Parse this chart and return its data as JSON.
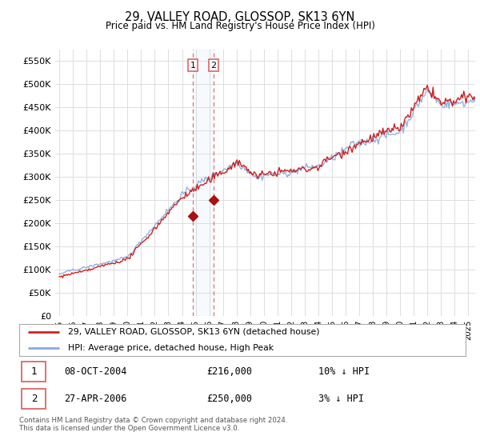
{
  "title": "29, VALLEY ROAD, GLOSSOP, SK13 6YN",
  "subtitle": "Price paid vs. HM Land Registry's House Price Index (HPI)",
  "legend_entry1": "29, VALLEY ROAD, GLOSSOP, SK13 6YN (detached house)",
  "legend_entry2": "HPI: Average price, detached house, High Peak",
  "transaction1_date": "08-OCT-2004",
  "transaction1_price": "£216,000",
  "transaction1_hpi": "10% ↓ HPI",
  "transaction2_date": "27-APR-2006",
  "transaction2_price": "£250,000",
  "transaction2_hpi": "3% ↓ HPI",
  "footer": "Contains HM Land Registry data © Crown copyright and database right 2024.\nThis data is licensed under the Open Government Licence v3.0.",
  "line_color_red": "#cc2222",
  "line_color_blue": "#88aadd",
  "marker_color_red": "#aa1111",
  "vline_color": "#dd6666",
  "span_color": "#ddeeff",
  "background_color": "#ffffff",
  "grid_color": "#dddddd",
  "transaction1_x": 2004.79,
  "transaction1_y": 216000,
  "transaction2_x": 2006.32,
  "transaction2_y": 250000,
  "xlim_min": 1994.7,
  "xlim_max": 2025.5,
  "ylim_min": 0,
  "ylim_max": 575000,
  "yticks": [
    0,
    50000,
    100000,
    150000,
    200000,
    250000,
    300000,
    350000,
    400000,
    450000,
    500000,
    550000
  ],
  "ytick_labels": [
    "£0",
    "£50K",
    "£100K",
    "£150K",
    "£200K",
    "£250K",
    "£300K",
    "£350K",
    "£400K",
    "£450K",
    "£500K",
    "£550K"
  ]
}
